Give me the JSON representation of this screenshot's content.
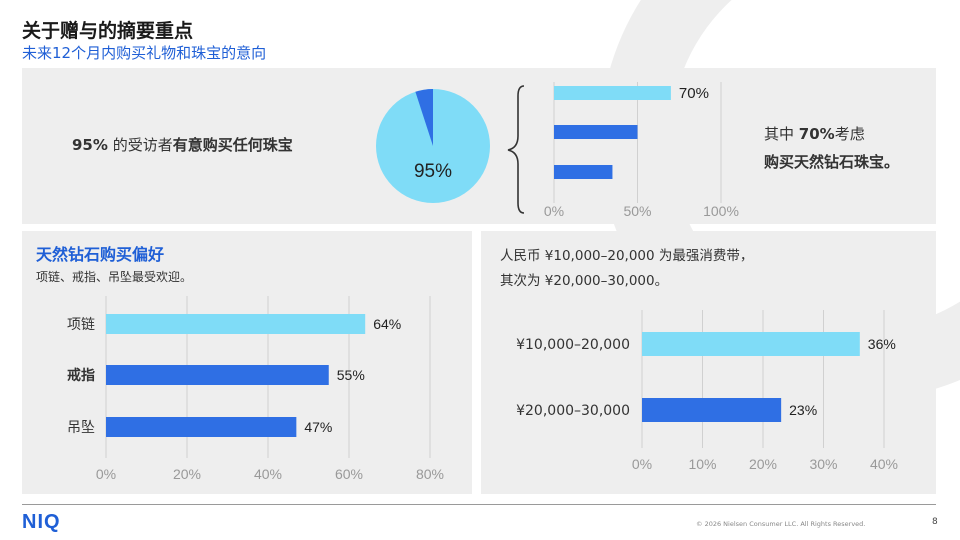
{
  "header": {
    "title": "关于赠与的摘要重点",
    "subtitle": "未来12个月内购买礼物和珠宝的意向"
  },
  "top_panel": {
    "statement_value": "95%",
    "statement_text_plain": "的受访者",
    "statement_text_bold": "有意购买任何珠宝",
    "pie_label": "95%",
    "note_prefix": "其中",
    "note_value": "70%",
    "note_suffix": "考虑",
    "note_line2": "购买天然钻石珠宝。"
  },
  "left_panel": {
    "title": "天然钻石购买偏好",
    "subtitle": "项链、戒指、吊坠最受欢迎。"
  },
  "right_panel": {
    "line1": "人民币 ¥10,000–20,000 为最强消费带，",
    "line2": "其次为 ¥20,000–30,000。"
  },
  "colors": {
    "light_blue": "#7fdcf7",
    "blue": "#2f6fe4",
    "panel_bg": "#eeeeee",
    "brand": "#1f5fd6"
  },
  "chart_data": [
    {
      "type": "pie",
      "categories": [
        "有意购买任何珠宝",
        ""
      ],
      "values": [
        95,
        5
      ],
      "labels": [
        "95%"
      ]
    },
    {
      "type": "bar",
      "orientation": "horizontal",
      "categories": [
        "",
        "",
        ""
      ],
      "values": [
        70,
        50,
        35
      ],
      "data_labels": [
        "70%",
        "",
        ""
      ],
      "xlim": [
        0,
        100
      ],
      "ticks": [
        "0%",
        "50%",
        "100%"
      ],
      "grid": true
    },
    {
      "type": "bar",
      "orientation": "horizontal",
      "categories": [
        "项链",
        "戒指",
        "吊坠"
      ],
      "values": [
        64,
        55,
        47
      ],
      "data_labels": [
        "64%",
        "55%",
        "47%"
      ],
      "xlim": [
        0,
        80
      ],
      "ticks": [
        "0%",
        "20%",
        "40%",
        "60%",
        "80%"
      ],
      "grid": true
    },
    {
      "type": "bar",
      "orientation": "horizontal",
      "categories": [
        "¥10,000–20,000",
        "¥20,000–30,000"
      ],
      "values": [
        36,
        23
      ],
      "data_labels": [
        "36%",
        "23%"
      ],
      "xlim": [
        0,
        40
      ],
      "ticks": [
        "0%",
        "10%",
        "20%",
        "30%",
        "40%"
      ],
      "grid": true
    }
  ],
  "footer": {
    "logo": "NIQ",
    "copyright": "© 2026 Nielsen Consumer LLC. All Rights Reserved.",
    "page": "8"
  }
}
